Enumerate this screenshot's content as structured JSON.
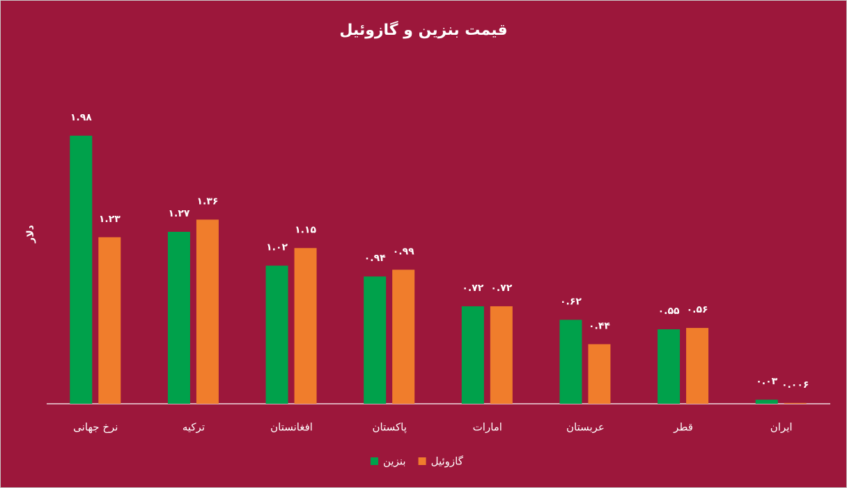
{
  "chart_data": {
    "type": "bar",
    "title": "قیمت بنزین و گازوئیل",
    "y_label": "دلار",
    "categories": [
      "نرخ جهانی",
      "ترکیه",
      "افغانستان",
      "پاکستان",
      "امارات",
      "عربستان",
      "قطر",
      "ایران"
    ],
    "series": [
      {
        "name": "بنزین",
        "color": "#00a14b",
        "values": [
          1.98,
          1.27,
          1.02,
          0.94,
          0.72,
          0.62,
          0.55,
          0.03
        ],
        "value_labels": [
          "۱.۹۸",
          "۱.۲۷",
          "۱.۰۲",
          "۰.۹۴",
          "۰.۷۲",
          "۰.۶۲",
          "۰.۵۵",
          "۰.۰۳"
        ]
      },
      {
        "name": "گازوئیل",
        "color": "#f07d2c",
        "values": [
          1.23,
          1.36,
          1.15,
          0.99,
          0.72,
          0.44,
          0.56,
          0.006
        ],
        "value_labels": [
          "۱.۲۳",
          "۱.۳۶",
          "۱.۱۵",
          "۰.۹۹",
          "۰.۷۲",
          "۰.۴۴",
          "۰.۵۶",
          "۰.۰۰۶"
        ]
      }
    ],
    "ylim": [
      0,
      2
    ]
  }
}
